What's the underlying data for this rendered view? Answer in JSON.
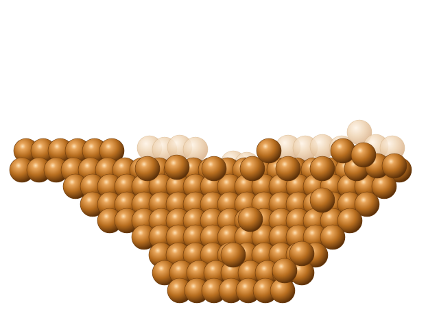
{
  "scene": {
    "subject": "copper-nanocluster",
    "background_color": "#ffffff",
    "atom_color_base": "#b06a1c",
    "atom_color_light": "#ffd9a3",
    "atom_color_dark": "#5a2f08",
    "back_atom_color": "#e9c9a4"
  }
}
